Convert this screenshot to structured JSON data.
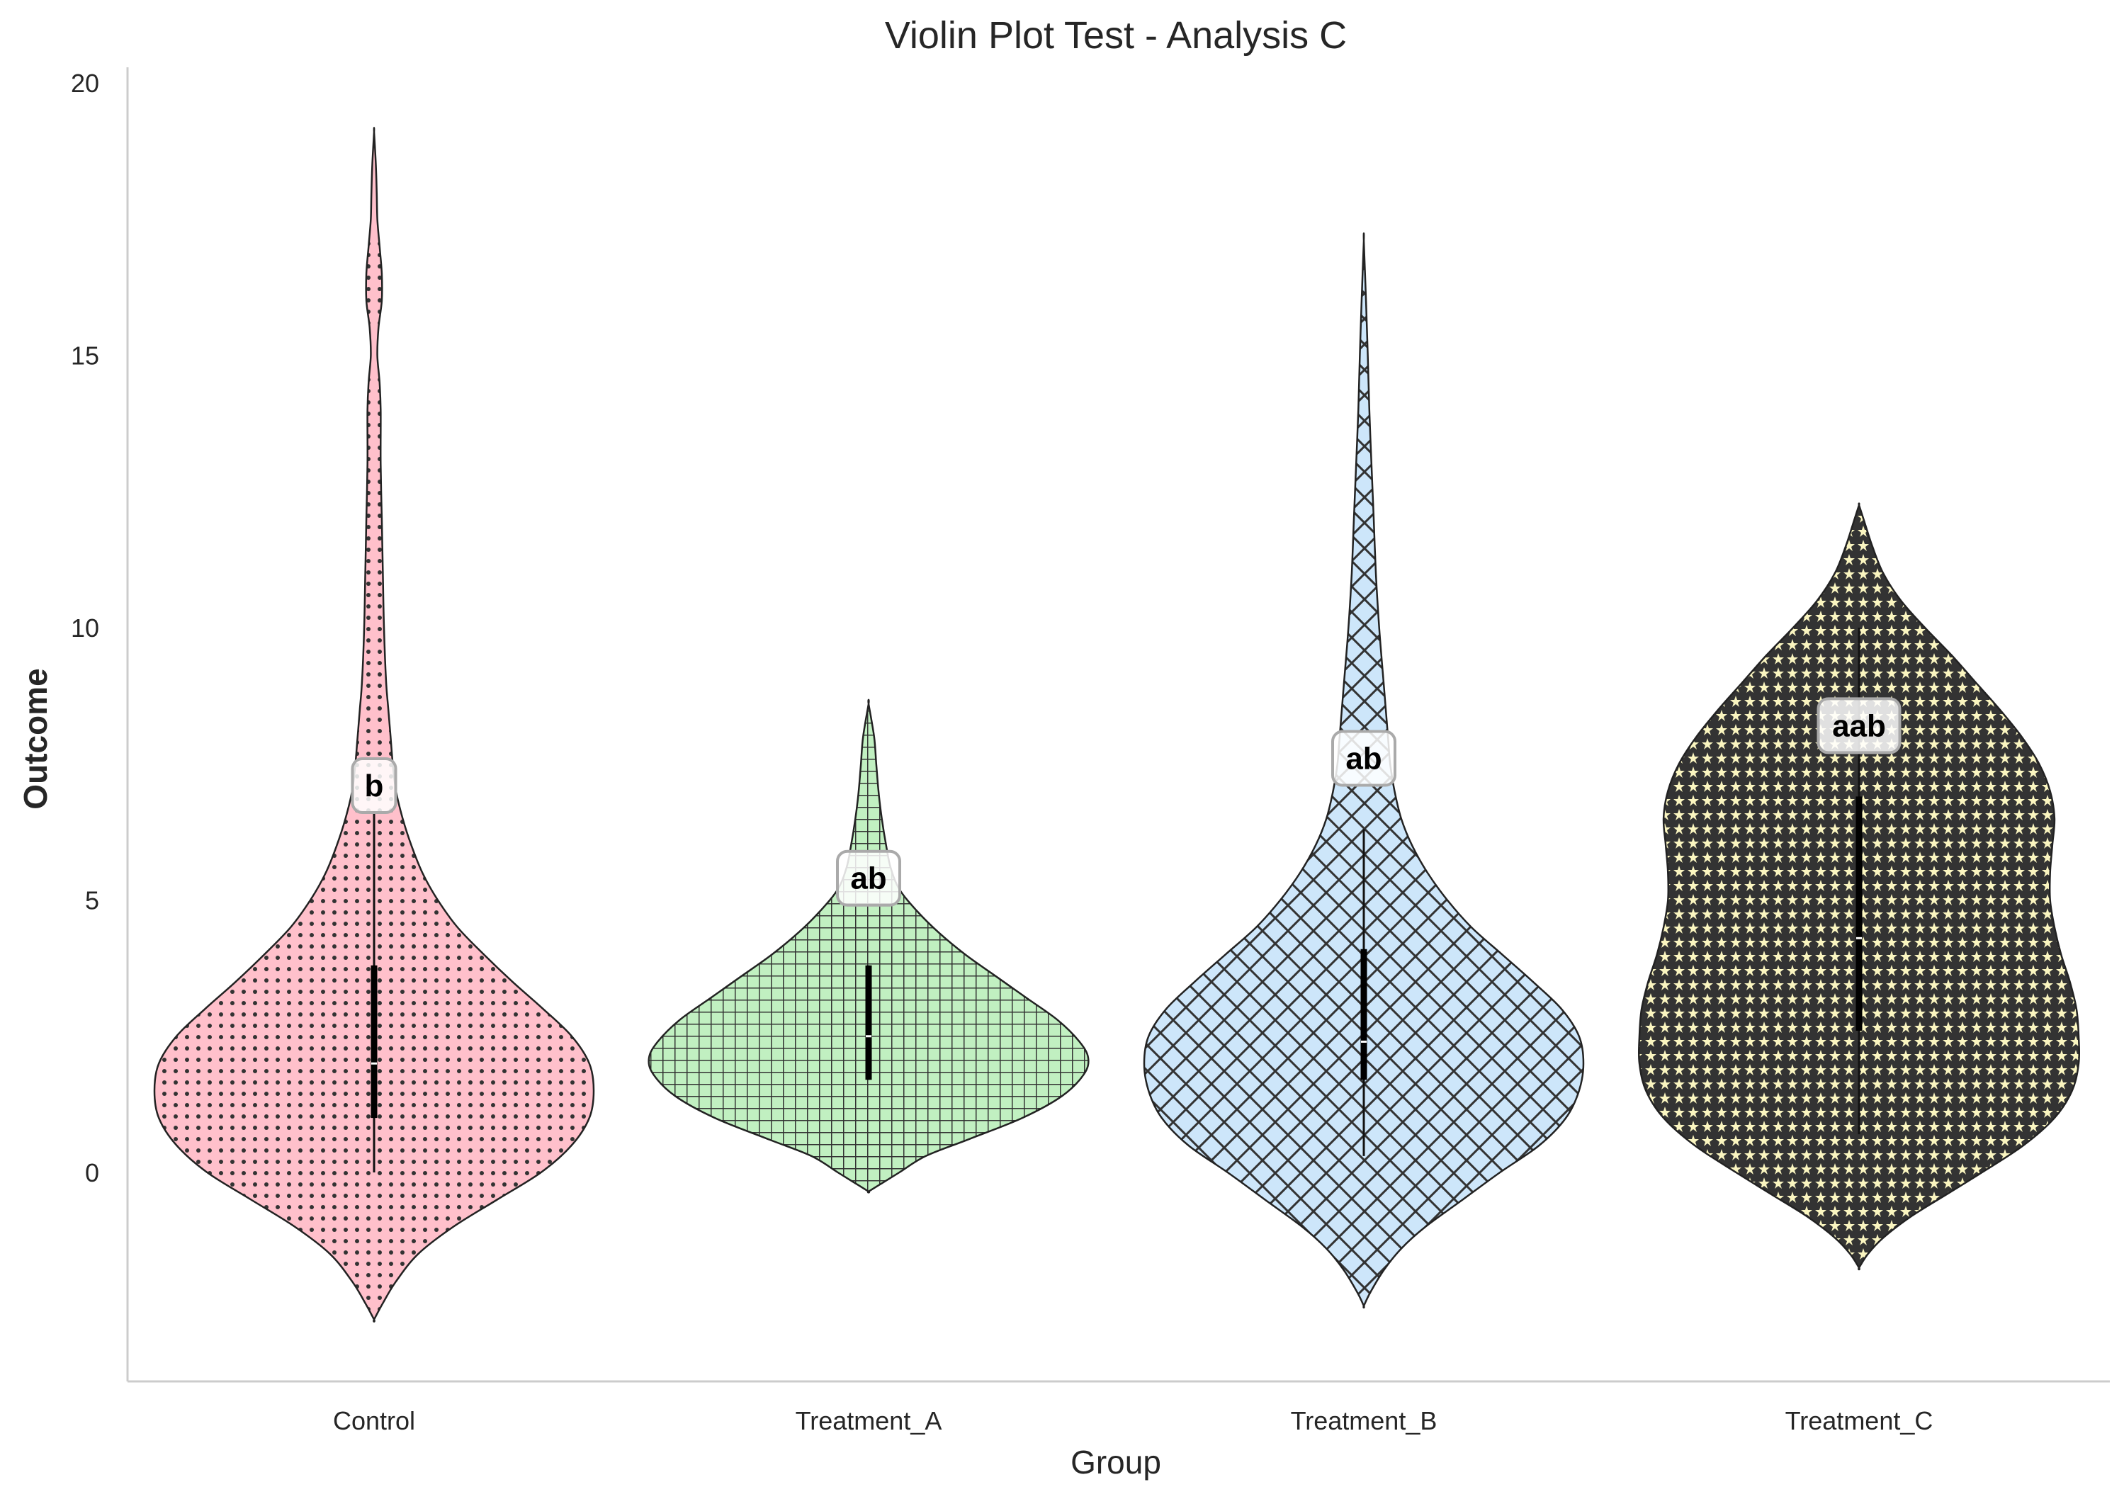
{
  "chart_data": {
    "type": "violin",
    "title": "Violin Plot Test - Analysis C",
    "xlabel": "Group",
    "ylabel": "Outcome",
    "categories": [
      "Control",
      "Treatment_A",
      "Treatment_B",
      "Treatment_C"
    ],
    "yticks": [
      0,
      5,
      10,
      15,
      20
    ],
    "ylim": [
      -3.8,
      20.3
    ],
    "grid": false,
    "colors": {
      "Control": "#ffc0cb",
      "Treatment_A": "#c1f0c1",
      "Treatment_B": "#cde6fa",
      "Treatment_C": "#faf5c0"
    },
    "hatches": {
      "Control": "dots",
      "Treatment_A": "grid",
      "Treatment_B": "diagonal-crosshatch",
      "Treatment_C": "stars"
    },
    "violins": [
      {
        "group": "Control",
        "letter": "b",
        "letter_y": 7.1,
        "whisker": [
          0.0,
          6.6
        ],
        "box": [
          1.0,
          3.8
        ],
        "median": 2.0,
        "profile": [
          [
            -2.7,
            0.0
          ],
          [
            -2.4,
            0.04
          ],
          [
            -2.0,
            0.1
          ],
          [
            -1.5,
            0.2
          ],
          [
            -1.0,
            0.36
          ],
          [
            -0.5,
            0.56
          ],
          [
            0.0,
            0.76
          ],
          [
            0.5,
            0.9
          ],
          [
            1.0,
            0.98
          ],
          [
            1.5,
            1.0
          ],
          [
            2.0,
            0.98
          ],
          [
            2.5,
            0.9
          ],
          [
            3.0,
            0.77
          ],
          [
            3.5,
            0.63
          ],
          [
            4.0,
            0.5
          ],
          [
            4.5,
            0.38
          ],
          [
            5.0,
            0.29
          ],
          [
            5.5,
            0.22
          ],
          [
            6.0,
            0.17
          ],
          [
            6.5,
            0.13
          ],
          [
            7.0,
            0.1
          ],
          [
            7.5,
            0.085
          ],
          [
            8.0,
            0.075
          ],
          [
            8.5,
            0.065
          ],
          [
            9.0,
            0.055
          ],
          [
            10.0,
            0.045
          ],
          [
            11.0,
            0.04
          ],
          [
            12.0,
            0.035
          ],
          [
            13.0,
            0.03
          ],
          [
            14.0,
            0.03
          ],
          [
            14.5,
            0.025
          ],
          [
            15.0,
            0.015
          ],
          [
            15.5,
            0.02
          ],
          [
            16.0,
            0.035
          ],
          [
            16.5,
            0.035
          ],
          [
            17.0,
            0.025
          ],
          [
            17.5,
            0.015
          ],
          [
            18.0,
            0.012
          ],
          [
            18.5,
            0.008
          ],
          [
            19.1,
            0.0
          ]
        ]
      },
      {
        "group": "Treatment_A",
        "letter": "ab",
        "letter_y": 5.4,
        "whisker": [
          1.7,
          3.8
        ],
        "box": [
          1.7,
          3.8
        ],
        "median": 2.5,
        "profile": [
          [
            -0.35,
            0.0
          ],
          [
            -0.2,
            0.06
          ],
          [
            0.0,
            0.14
          ],
          [
            0.3,
            0.26
          ],
          [
            0.6,
            0.45
          ],
          [
            1.0,
            0.7
          ],
          [
            1.4,
            0.88
          ],
          [
            1.8,
            0.98
          ],
          [
            2.1,
            1.0
          ],
          [
            2.4,
            0.96
          ],
          [
            2.8,
            0.86
          ],
          [
            3.2,
            0.72
          ],
          [
            3.6,
            0.58
          ],
          [
            4.0,
            0.44
          ],
          [
            4.4,
            0.32
          ],
          [
            4.8,
            0.22
          ],
          [
            5.2,
            0.14
          ],
          [
            5.6,
            0.1
          ],
          [
            6.0,
            0.08
          ],
          [
            6.5,
            0.06
          ],
          [
            7.0,
            0.045
          ],
          [
            7.5,
            0.035
          ],
          [
            8.0,
            0.025
          ],
          [
            8.6,
            0.0
          ]
        ]
      },
      {
        "group": "Treatment_B",
        "letter": "ab",
        "letter_y": 7.6,
        "whisker": [
          0.3,
          6.3
        ],
        "box": [
          1.7,
          4.1
        ],
        "median": 2.4,
        "profile": [
          [
            -2.45,
            0.0
          ],
          [
            -2.2,
            0.03
          ],
          [
            -1.8,
            0.09
          ],
          [
            -1.4,
            0.17
          ],
          [
            -1.0,
            0.28
          ],
          [
            -0.5,
            0.45
          ],
          [
            0.0,
            0.62
          ],
          [
            0.5,
            0.8
          ],
          [
            1.0,
            0.92
          ],
          [
            1.5,
            0.98
          ],
          [
            2.0,
            1.0
          ],
          [
            2.5,
            0.98
          ],
          [
            3.0,
            0.9
          ],
          [
            3.5,
            0.77
          ],
          [
            4.0,
            0.63
          ],
          [
            4.5,
            0.49
          ],
          [
            5.0,
            0.38
          ],
          [
            5.5,
            0.29
          ],
          [
            6.0,
            0.22
          ],
          [
            6.5,
            0.17
          ],
          [
            7.0,
            0.14
          ],
          [
            7.5,
            0.12
          ],
          [
            8.0,
            0.11
          ],
          [
            9.0,
            0.09
          ],
          [
            10.0,
            0.07
          ],
          [
            11.0,
            0.055
          ],
          [
            12.0,
            0.045
          ],
          [
            13.0,
            0.035
          ],
          [
            14.0,
            0.025
          ],
          [
            15.0,
            0.018
          ],
          [
            16.0,
            0.01
          ],
          [
            17.1,
            0.0
          ]
        ]
      },
      {
        "group": "Treatment_C",
        "letter": "aab",
        "letter_y": 8.2,
        "whisker": [
          0.7,
          10.0
        ],
        "box": [
          2.6,
          6.9
        ],
        "median": 4.3,
        "profile": [
          [
            -1.75,
            0.0
          ],
          [
            -1.5,
            0.04
          ],
          [
            -1.2,
            0.11
          ],
          [
            -0.8,
            0.24
          ],
          [
            -0.4,
            0.4
          ],
          [
            0.0,
            0.56
          ],
          [
            0.5,
            0.75
          ],
          [
            1.0,
            0.89
          ],
          [
            1.5,
            0.97
          ],
          [
            2.0,
            1.0
          ],
          [
            2.5,
            1.0
          ],
          [
            3.0,
            0.99
          ],
          [
            3.5,
            0.96
          ],
          [
            4.0,
            0.92
          ],
          [
            4.5,
            0.89
          ],
          [
            5.0,
            0.87
          ],
          [
            5.5,
            0.87
          ],
          [
            6.0,
            0.88
          ],
          [
            6.5,
            0.89
          ],
          [
            7.0,
            0.87
          ],
          [
            7.5,
            0.82
          ],
          [
            8.0,
            0.74
          ],
          [
            8.5,
            0.64
          ],
          [
            9.0,
            0.53
          ],
          [
            9.5,
            0.42
          ],
          [
            10.0,
            0.3
          ],
          [
            10.5,
            0.19
          ],
          [
            11.0,
            0.11
          ],
          [
            11.5,
            0.06
          ],
          [
            12.0,
            0.02
          ],
          [
            12.25,
            0.0
          ]
        ]
      }
    ]
  }
}
